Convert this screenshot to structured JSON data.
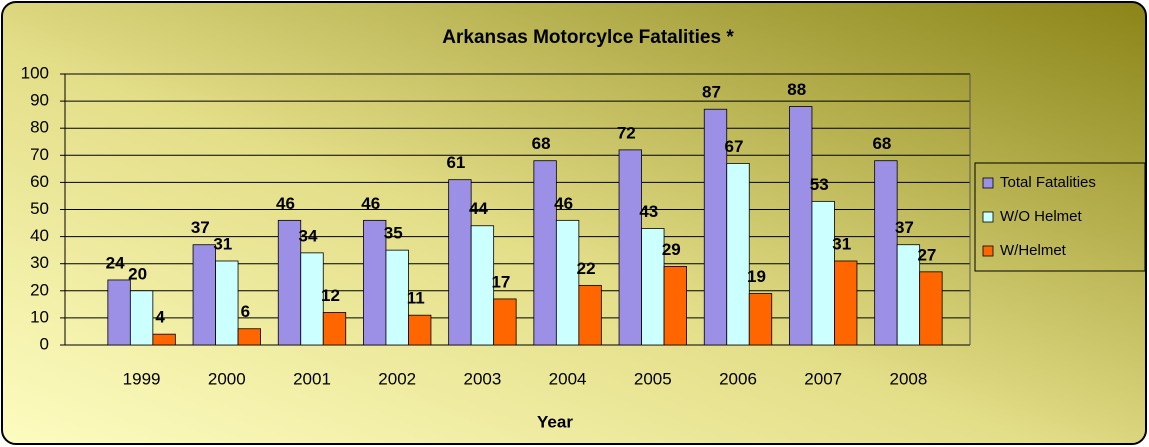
{
  "chart_data": {
    "type": "bar",
    "title": "Arkansas Motorcylce Fatalities *",
    "x_label": "Year",
    "categories": [
      "1999",
      "2000",
      "2001",
      "2002",
      "2003",
      "2004",
      "2005",
      "2006",
      "2007",
      "2008"
    ],
    "series": [
      {
        "name": "Total Fatalities",
        "color": "#9c8fe6",
        "values": [
          24,
          37,
          46,
          46,
          61,
          68,
          72,
          87,
          88,
          68
        ]
      },
      {
        "name": "W/O Helmet",
        "color": "#ccffff",
        "values": [
          20,
          31,
          34,
          35,
          44,
          46,
          43,
          67,
          53,
          37
        ]
      },
      {
        "name": "W/Helmet",
        "color": "#ff6600",
        "values": [
          4,
          6,
          12,
          11,
          17,
          22,
          29,
          19,
          31,
          27
        ]
      }
    ],
    "ylim": [
      0,
      100
    ],
    "yticks": [
      0,
      10,
      20,
      30,
      40,
      50,
      60,
      70,
      80,
      90,
      100
    ],
    "grid": true,
    "legend": "right"
  }
}
